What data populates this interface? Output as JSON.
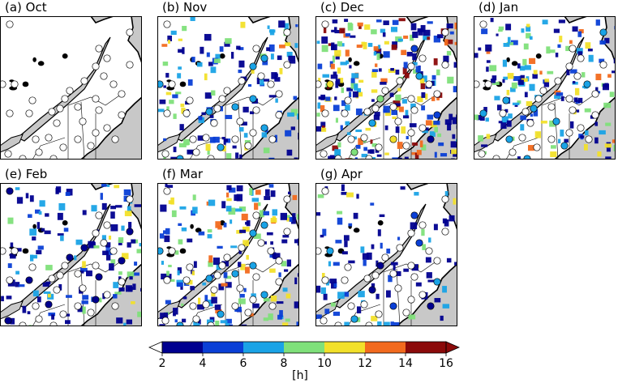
{
  "figure": {
    "panels": [
      {
        "key": "oct",
        "title": "(a) Oct",
        "intensity": 0.0
      },
      {
        "key": "nov",
        "title": "(b) Nov",
        "intensity": 0.55
      },
      {
        "key": "dec",
        "title": "(c) Dec",
        "intensity": 1.0
      },
      {
        "key": "jan",
        "title": "(d) Jan",
        "intensity": 0.65
      },
      {
        "key": "feb",
        "title": "(e) Feb",
        "intensity": 0.5
      },
      {
        "key": "mar",
        "title": "(f) Mar",
        "intensity": 0.7
      },
      {
        "key": "apr",
        "title": "(g) Apr",
        "intensity": 0.35
      }
    ],
    "colorbar": {
      "label": "[h]",
      "ticks": [
        "2",
        "4",
        "6",
        "8",
        "10",
        "12",
        "14",
        "16"
      ],
      "colors": [
        "#00008f",
        "#0a3fd6",
        "#1aa3e6",
        "#7fe07a",
        "#f2e02a",
        "#f26a1e",
        "#8b0a0a"
      ],
      "extend": "both"
    }
  },
  "chart_data": {
    "type": "heatmap",
    "title": "",
    "panels": [
      "(a) Oct",
      "(b) Nov",
      "(c) Dec",
      "(d) Jan",
      "(e) Feb",
      "(f) Mar",
      "(g) Apr"
    ],
    "colorbar_label": "[h]",
    "colorbar_ticks": [
      2,
      4,
      6,
      8,
      10,
      12,
      14,
      16
    ],
    "value_range": [
      2,
      16
    ],
    "land_color": "#ffffff",
    "ocean_color": "#c8c8c8",
    "station_marker": "circle"
  }
}
